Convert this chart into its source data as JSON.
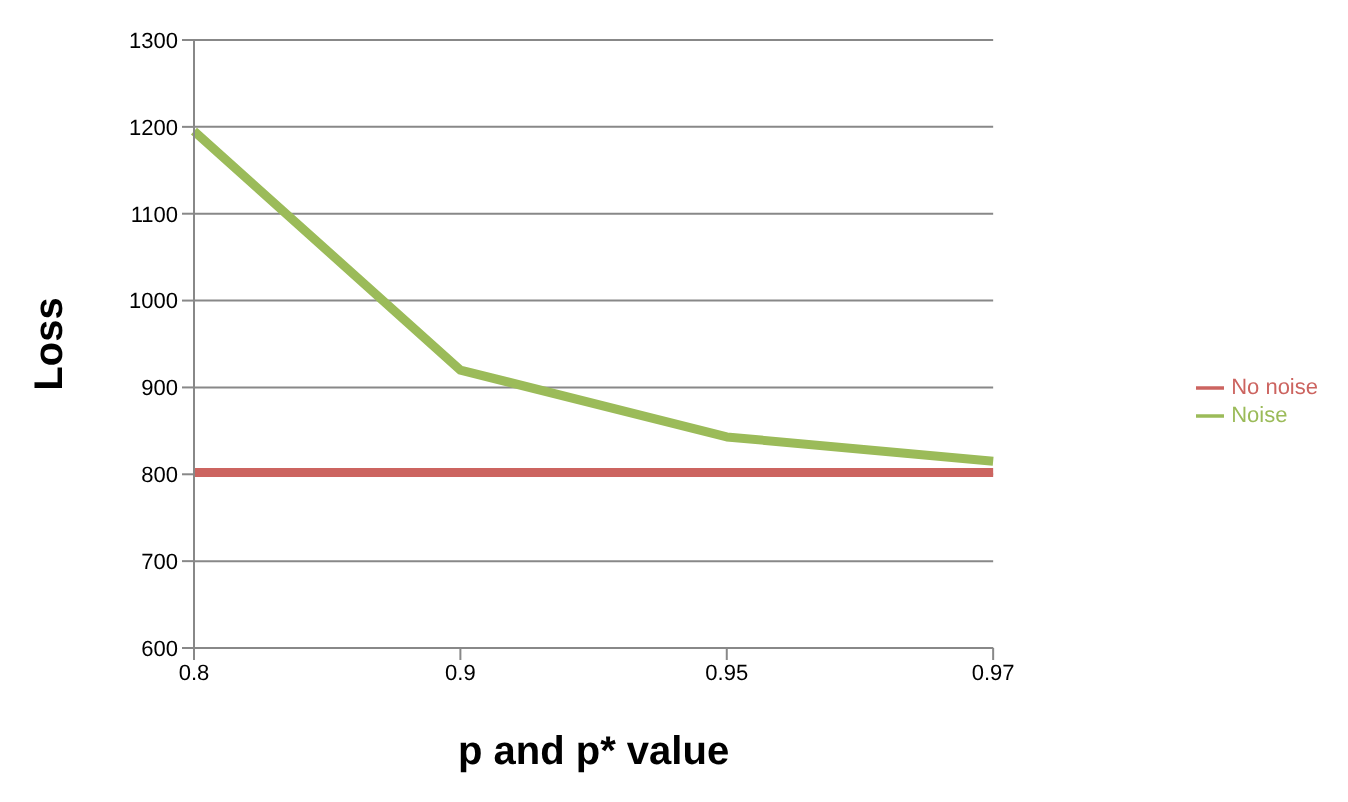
{
  "chart_data": {
    "type": "line",
    "xlabel": "p and p* value",
    "ylabel": "Loss",
    "categories": [
      "0.8",
      "0.9",
      "0.95",
      "0.97"
    ],
    "series": [
      {
        "name": "No noise",
        "color": "#cc6460",
        "values": [
          802,
          802,
          802,
          802
        ]
      },
      {
        "name": "Noise",
        "color": "#9bbb59",
        "values": [
          1195,
          920,
          843,
          815
        ]
      }
    ],
    "ylim": [
      600,
      1300
    ],
    "yticks": [
      600,
      700,
      800,
      900,
      1000,
      1100,
      1200,
      1300
    ],
    "grid": "y",
    "legend": "right",
    "marker": "none",
    "line_style": "solid"
  }
}
